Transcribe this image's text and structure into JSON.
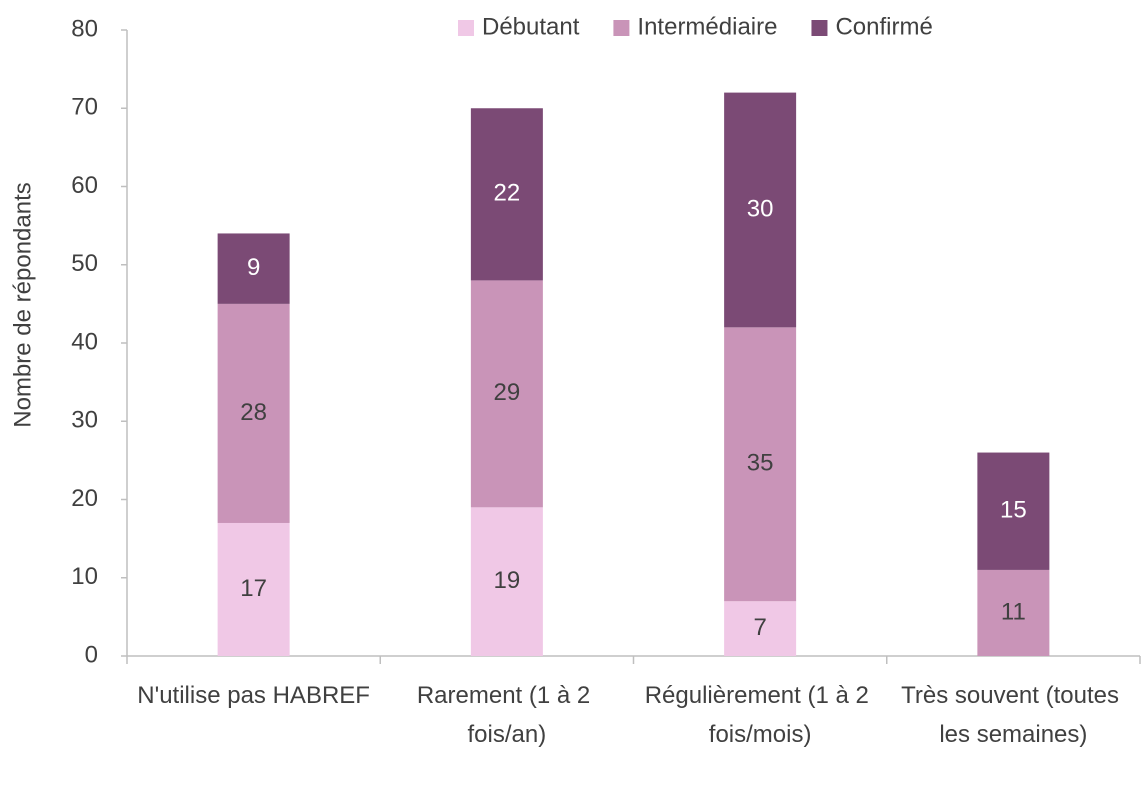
{
  "chart_data": {
    "type": "stacked_bar",
    "y_label": "Nombre de répondants",
    "categories": [
      "N'utilise pas HABREF",
      "Rarement (1 à 2 fois/an)",
      "Régulièrement (1 à 2 fois/mois)",
      "Très souvent (toutes les semaines)"
    ],
    "series": [
      {
        "name": "Débutant",
        "color": "#f0c8e6",
        "label_color": "#404040",
        "values": [
          17,
          19,
          7,
          null
        ]
      },
      {
        "name": "Intermédiaire",
        "color": "#c994b8",
        "label_color": "#404040",
        "values": [
          28,
          29,
          35,
          11
        ]
      },
      {
        "name": "Confirmé",
        "color": "#7b4a75",
        "label_color": "#ffffff",
        "values": [
          9,
          22,
          30,
          15
        ]
      }
    ],
    "ylim": [
      0,
      80
    ],
    "yticks": [
      0,
      10,
      20,
      30,
      40,
      50,
      60,
      70,
      80
    ],
    "grid": false,
    "legend": "top"
  }
}
